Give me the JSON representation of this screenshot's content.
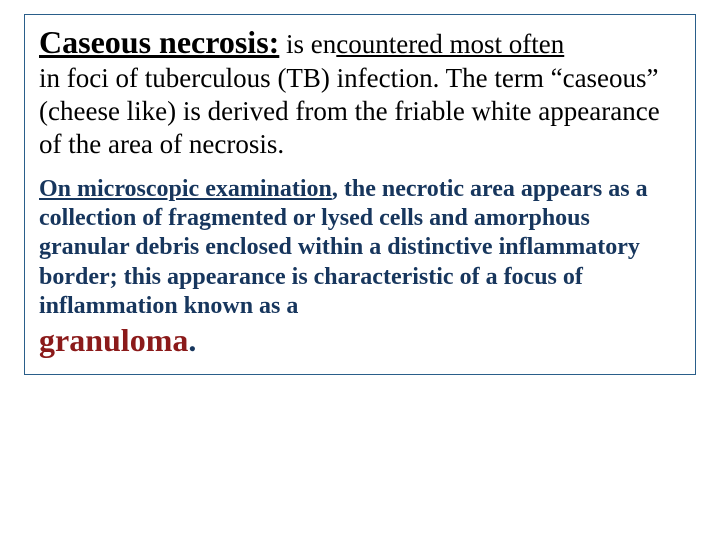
{
  "colors": {
    "border": "#2a5e8a",
    "black": "#000000",
    "navy": "#17365d",
    "darkred": "#8b1a1a"
  },
  "p1": {
    "heading": "Caseous necrosis:",
    "after_heading": " is en",
    "underlined_tail": "countered most often ",
    "rest": "in foci of tuberculous (TB) infection.\nThe term “caseous” (cheese like) is derived from the friable white appearance of the area of necrosis."
  },
  "p2": {
    "ul1": "On microscopic examination",
    "mid": ", the necrotic area appears as a collection of fragmented or lysed cells and amorphous granular debris enclosed within a distinctive inflammatory border; this appearance is characteristic of a focus of inflammation known as a ",
    "keyword": "granuloma",
    "period": "."
  }
}
